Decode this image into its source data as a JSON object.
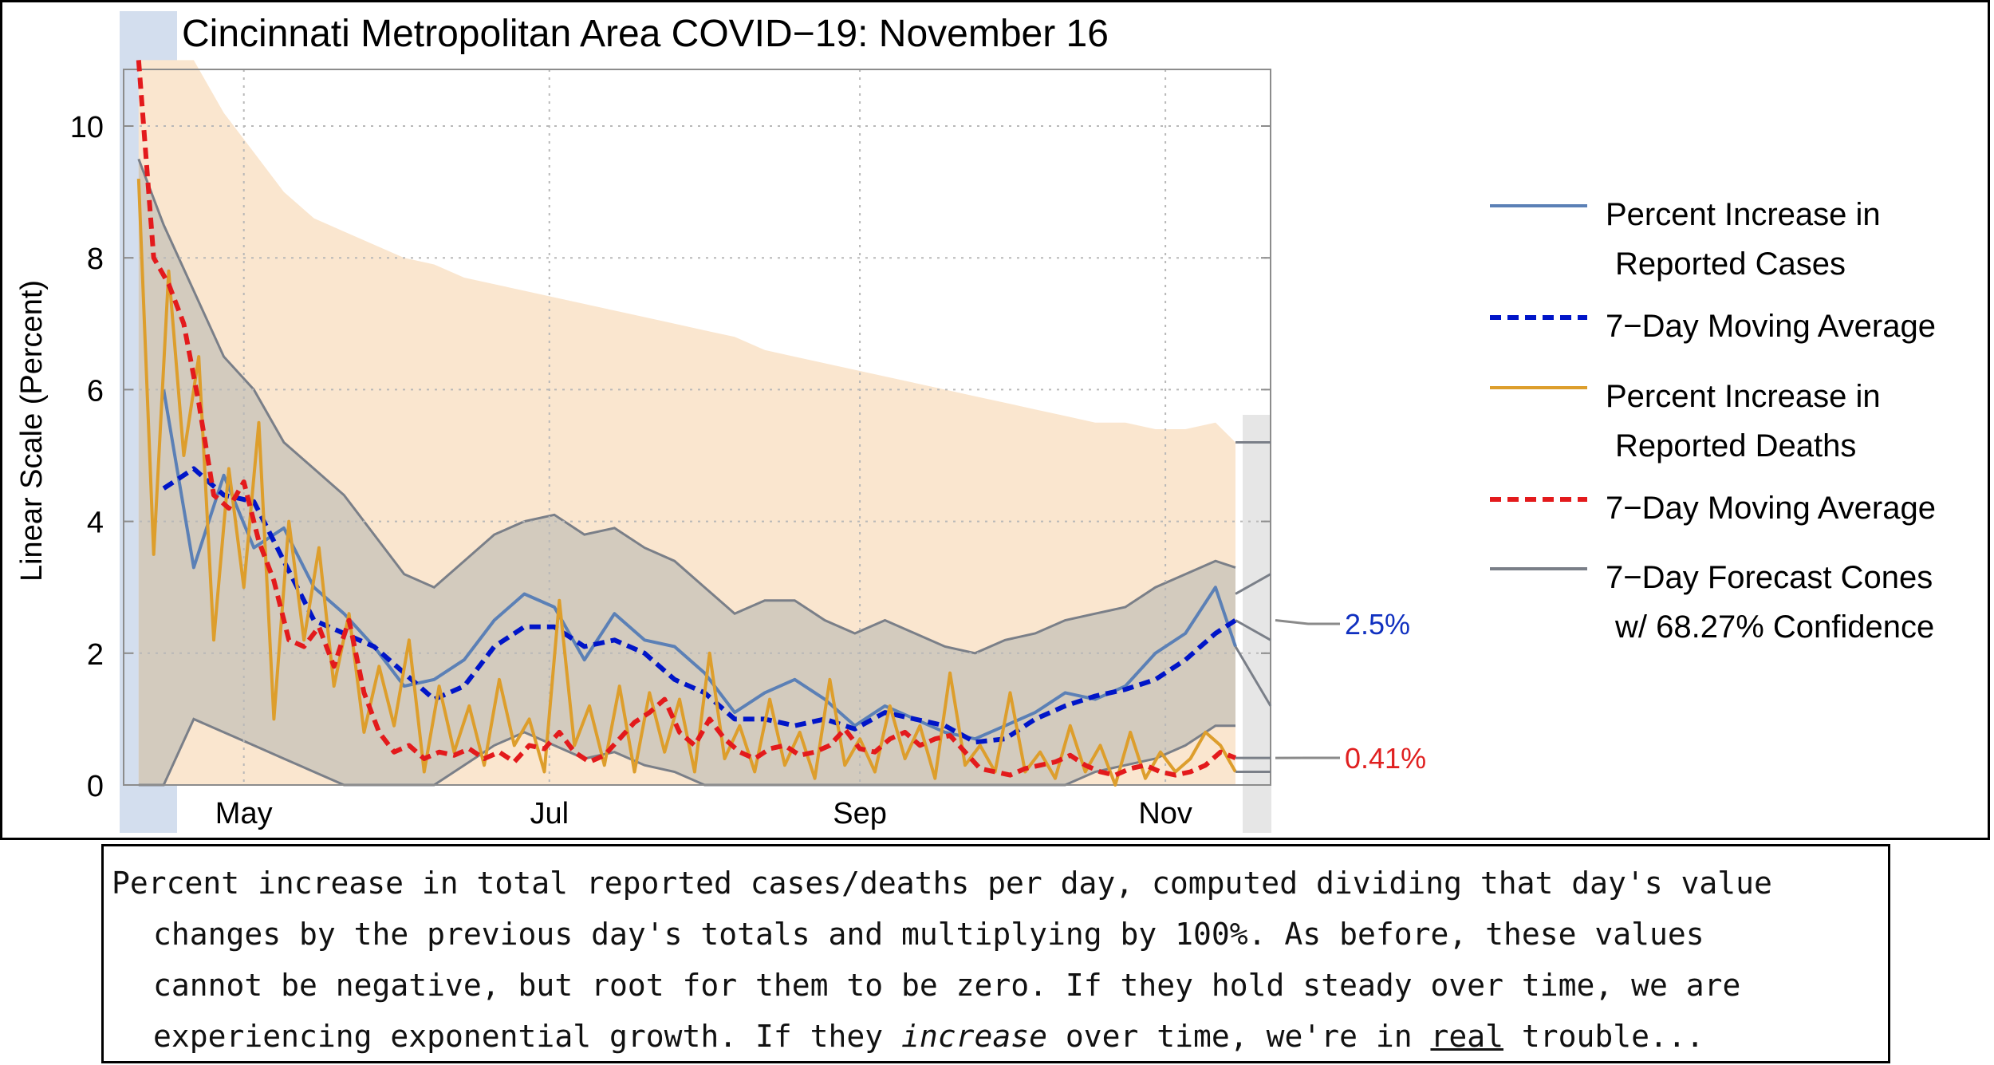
{
  "chart_data": {
    "type": "line",
    "title": "Cincinnati Metropolitan Area COVID−19: November 16",
    "ylabel": "Linear Scale (Percent)",
    "xlabel": "",
    "ylim": [
      0,
      11
    ],
    "y_ticks": [
      "0",
      "2",
      "4",
      "6",
      "8",
      "10"
    ],
    "x_ticks": [
      {
        "label": "May",
        "day": 122
      },
      {
        "label": "Jul",
        "day": 183
      },
      {
        "label": "Sep",
        "day": 245
      },
      {
        "label": "Nov",
        "day": 306
      }
    ],
    "grid": "dotted",
    "legend_position": "right",
    "legend": [
      {
        "label_lines": [
          "Percent Increase in",
          "Reported Cases"
        ],
        "style": "solid",
        "color": "#5b80b6"
      },
      {
        "label_lines": [
          "7−Day Moving Average"
        ],
        "style": "dashed",
        "color": "#0015c8"
      },
      {
        "label_lines": [
          "Percent Increase in",
          "Reported Deaths"
        ],
        "style": "solid",
        "color": "#dd9e2c"
      },
      {
        "label_lines": [
          "7−Day Moving Average"
        ],
        "style": "dashed",
        "color": "#e31a1c"
      },
      {
        "label_lines": [
          "7−Day Forecast Cones",
          "w/ 68.27% Confidence"
        ],
        "style": "solid",
        "color": "#7a7f88"
      }
    ],
    "end_labels": [
      {
        "text": "2.5%",
        "value": 2.5,
        "color": "#1030c0"
      },
      {
        "text": "0.41%",
        "value": 0.41,
        "color": "#e02020"
      }
    ],
    "series": [
      {
        "name": "Percent Increase in Reported Cases",
        "style": "solid",
        "color": "#5b80b6",
        "x": [
          106,
          112,
          118,
          124,
          130,
          136,
          142,
          148,
          154,
          160,
          166,
          172,
          178,
          184,
          190,
          196,
          202,
          208,
          214,
          220,
          226,
          232,
          238,
          244,
          250,
          256,
          262,
          268,
          274,
          280,
          286,
          292,
          298,
          304,
          310,
          316,
          320
        ],
        "y": [
          6.0,
          3.3,
          4.7,
          3.6,
          3.9,
          3.0,
          2.6,
          2.1,
          1.5,
          1.6,
          1.9,
          2.5,
          2.9,
          2.7,
          1.9,
          2.6,
          2.2,
          2.1,
          1.7,
          1.1,
          1.4,
          1.6,
          1.3,
          0.9,
          1.2,
          1.0,
          0.8,
          0.7,
          0.9,
          1.1,
          1.4,
          1.3,
          1.5,
          2.0,
          2.3,
          3.0,
          2.1
        ]
      },
      {
        "name": "7−Day Moving Average (cases)",
        "style": "dashed",
        "color": "#0015c8",
        "x": [
          106,
          112,
          118,
          124,
          130,
          136,
          142,
          148,
          154,
          160,
          166,
          172,
          178,
          184,
          190,
          196,
          202,
          208,
          214,
          220,
          226,
          232,
          238,
          244,
          250,
          256,
          262,
          268,
          274,
          280,
          286,
          292,
          298,
          304,
          310,
          316,
          320
        ],
        "y": [
          4.5,
          4.8,
          4.4,
          4.3,
          3.4,
          2.5,
          2.3,
          2.1,
          1.7,
          1.3,
          1.5,
          2.1,
          2.4,
          2.4,
          2.1,
          2.2,
          2.0,
          1.6,
          1.4,
          1.0,
          1.0,
          0.9,
          1.0,
          0.85,
          1.1,
          1.0,
          0.9,
          0.65,
          0.7,
          1.0,
          1.2,
          1.35,
          1.45,
          1.6,
          1.9,
          2.3,
          2.5
        ]
      },
      {
        "name": "Percent Increase in Reported Deaths",
        "style": "solid",
        "color": "#dd9e2c",
        "x": [
          101,
          104,
          107,
          110,
          113,
          116,
          119,
          122,
          125,
          128,
          131,
          134,
          137,
          140,
          143,
          146,
          149,
          152,
          155,
          158,
          161,
          164,
          167,
          170,
          173,
          176,
          179,
          182,
          185,
          188,
          191,
          194,
          197,
          200,
          203,
          206,
          209,
          212,
          215,
          218,
          221,
          224,
          227,
          230,
          233,
          236,
          239,
          242,
          245,
          248,
          251,
          254,
          257,
          260,
          263,
          266,
          269,
          272,
          275,
          278,
          281,
          284,
          287,
          290,
          293,
          296,
          299,
          302,
          305,
          308,
          311,
          314,
          317,
          320
        ],
        "y": [
          9.2,
          3.5,
          7.8,
          5.0,
          6.5,
          2.2,
          4.8,
          3.0,
          5.5,
          1.0,
          4.0,
          2.2,
          3.6,
          1.5,
          2.6,
          0.8,
          1.8,
          0.9,
          2.2,
          0.2,
          1.5,
          0.5,
          1.2,
          0.3,
          1.6,
          0.6,
          1.0,
          0.2,
          2.8,
          0.6,
          1.2,
          0.3,
          1.5,
          0.2,
          1.4,
          0.5,
          1.3,
          0.2,
          2.0,
          0.4,
          0.9,
          0.2,
          1.3,
          0.3,
          0.8,
          0.1,
          1.6,
          0.3,
          0.7,
          0.2,
          1.2,
          0.4,
          0.9,
          0.1,
          1.7,
          0.3,
          0.6,
          0.2,
          1.4,
          0.2,
          0.5,
          0.1,
          0.9,
          0.2,
          0.6,
          0.0,
          0.8,
          0.1,
          0.5,
          0.2,
          0.4,
          0.8,
          0.6,
          0.2
        ]
      },
      {
        "name": "7−Day Moving Average (deaths)",
        "style": "dashed",
        "color": "#e31a1c",
        "x": [
          101,
          104,
          107,
          110,
          113,
          116,
          119,
          122,
          125,
          128,
          131,
          134,
          137,
          140,
          143,
          146,
          149,
          152,
          155,
          158,
          161,
          164,
          167,
          170,
          173,
          176,
          179,
          182,
          185,
          188,
          191,
          194,
          197,
          200,
          203,
          206,
          209,
          212,
          215,
          218,
          221,
          224,
          227,
          230,
          233,
          236,
          239,
          242,
          245,
          248,
          251,
          254,
          257,
          260,
          263,
          266,
          269,
          272,
          275,
          278,
          281,
          284,
          287,
          290,
          293,
          296,
          299,
          302,
          305,
          308,
          311,
          314,
          317,
          320
        ],
        "y": [
          11.0,
          8.0,
          7.6,
          7.0,
          5.8,
          4.4,
          4.2,
          4.6,
          3.7,
          3.1,
          2.2,
          2.1,
          2.4,
          1.8,
          2.5,
          1.4,
          0.8,
          0.5,
          0.6,
          0.4,
          0.5,
          0.45,
          0.55,
          0.4,
          0.5,
          0.35,
          0.6,
          0.55,
          0.8,
          0.5,
          0.35,
          0.45,
          0.7,
          0.95,
          1.1,
          1.3,
          0.8,
          0.6,
          1.0,
          0.7,
          0.5,
          0.4,
          0.55,
          0.6,
          0.45,
          0.5,
          0.6,
          0.85,
          0.55,
          0.5,
          0.7,
          0.8,
          0.6,
          0.7,
          0.75,
          0.5,
          0.25,
          0.2,
          0.15,
          0.25,
          0.3,
          0.35,
          0.45,
          0.3,
          0.2,
          0.15,
          0.25,
          0.3,
          0.2,
          0.15,
          0.2,
          0.3,
          0.5,
          0.41
        ]
      }
    ],
    "bands": [
      {
        "name": "deaths confidence band",
        "color": "#fae6cf",
        "x": [
          101,
          106,
          112,
          118,
          124,
          130,
          136,
          142,
          148,
          154,
          160,
          166,
          172,
          178,
          184,
          190,
          196,
          202,
          208,
          214,
          220,
          226,
          232,
          238,
          244,
          250,
          256,
          262,
          268,
          274,
          280,
          286,
          292,
          298,
          304,
          310,
          316,
          320
        ],
        "upper": [
          11,
          11,
          11,
          10.2,
          9.6,
          9.0,
          8.6,
          8.4,
          8.2,
          8.0,
          7.9,
          7.7,
          7.6,
          7.5,
          7.4,
          7.3,
          7.2,
          7.1,
          7.0,
          6.9,
          6.8,
          6.6,
          6.5,
          6.4,
          6.3,
          6.2,
          6.1,
          6.0,
          5.9,
          5.8,
          5.7,
          5.6,
          5.5,
          5.5,
          5.4,
          5.4,
          5.5,
          5.2
        ],
        "lower": [
          0,
          0,
          0,
          0,
          0,
          0,
          0,
          0,
          0,
          0,
          0,
          0,
          0,
          0,
          0,
          0,
          0,
          0,
          0,
          0,
          0,
          0,
          0,
          0,
          0,
          0,
          0,
          0,
          0,
          0,
          0,
          0,
          0,
          0,
          0,
          0,
          0,
          0
        ]
      },
      {
        "name": "cases confidence band",
        "color": "#c5c1b8",
        "x": [
          101,
          106,
          112,
          118,
          124,
          130,
          136,
          142,
          148,
          154,
          160,
          166,
          172,
          178,
          184,
          190,
          196,
          202,
          208,
          214,
          220,
          226,
          232,
          238,
          244,
          250,
          256,
          262,
          268,
          274,
          280,
          286,
          292,
          298,
          304,
          310,
          316,
          320
        ],
        "upper": [
          9.5,
          8.5,
          7.5,
          6.5,
          6.0,
          5.2,
          4.8,
          4.4,
          3.8,
          3.2,
          3.0,
          3.4,
          3.8,
          4.0,
          4.1,
          3.8,
          3.9,
          3.6,
          3.4,
          3.0,
          2.6,
          2.8,
          2.8,
          2.5,
          2.3,
          2.5,
          2.3,
          2.1,
          2.0,
          2.2,
          2.3,
          2.5,
          2.6,
          2.7,
          3.0,
          3.2,
          3.4,
          3.3
        ],
        "lower": [
          0,
          0,
          1.0,
          0.8,
          0.6,
          0.4,
          0.2,
          0,
          0,
          0,
          0,
          0.3,
          0.6,
          0.8,
          0.6,
          0.4,
          0.5,
          0.3,
          0.2,
          0,
          0,
          0,
          0,
          0,
          0,
          0,
          0,
          0,
          0,
          0,
          0,
          0,
          0.2,
          0.3,
          0.4,
          0.6,
          0.9,
          0.9
        ]
      }
    ],
    "forecast_cones": [
      {
        "x": [
          320,
          327
        ],
        "upper": [
          2.9,
          3.2
        ],
        "mid": [
          2.5,
          2.2
        ],
        "lower": [
          2.1,
          1.2
        ]
      },
      {
        "x": [
          320,
          327
        ],
        "upper": [
          5.2,
          5.2
        ],
        "mid": [
          0.41,
          0.41
        ],
        "lower": [
          0.2,
          0.2
        ]
      }
    ]
  },
  "caption": {
    "line1": "Percent increase in total reported cases/deaths per day, computed dividing that day's value",
    "line2": "changes by the previous day's totals and multiplying by 100%. As before, these values",
    "line3": "cannot be negative, but root for them to be zero. If they hold steady over time, we are",
    "line4_a": "experiencing exponential growth. If they ",
    "line4_em": "increase",
    "line4_b": " over time, we're in ",
    "line4_u": "real",
    "line4_c": " trouble..."
  }
}
